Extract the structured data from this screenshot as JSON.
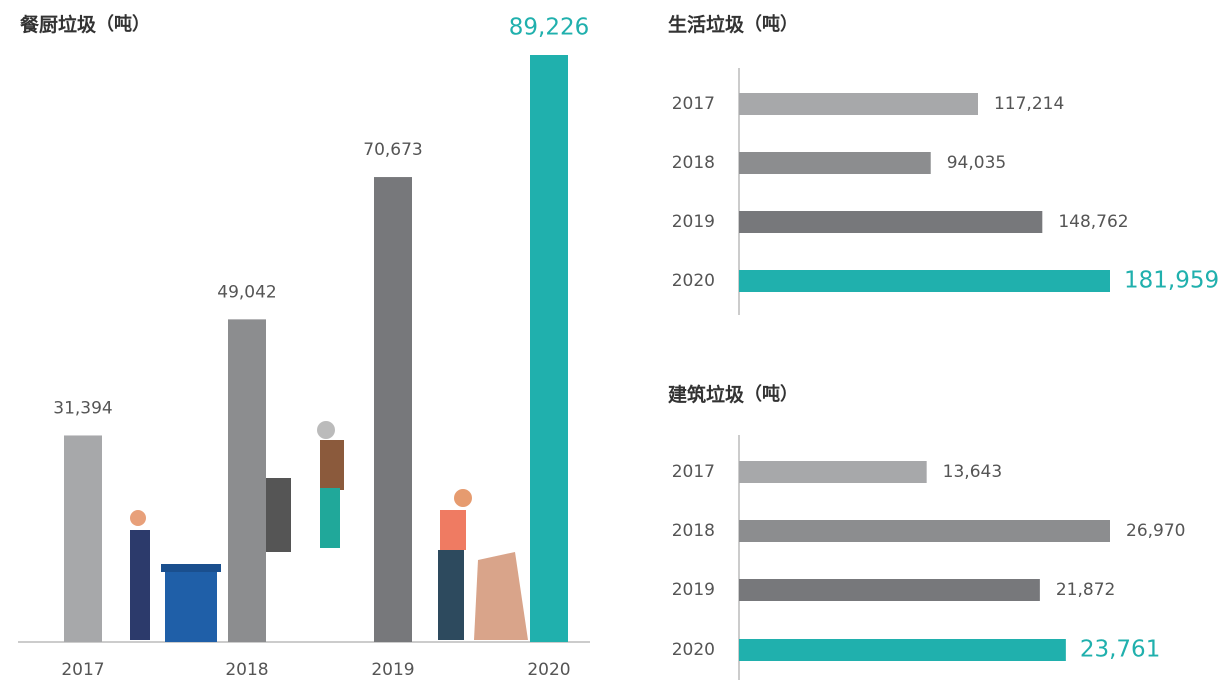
{
  "chart_data": [
    {
      "type": "bar",
      "title": "餐厨垃圾",
      "unit": "（吨）",
      "categories": [
        "2017",
        "2018",
        "2019",
        "2020"
      ],
      "values": [
        31394,
        49042,
        70673,
        89226
      ],
      "value_labels": [
        "31,394",
        "49,042",
        "70,673",
        "89,226"
      ],
      "colors": [
        "#a7a8aa",
        "#8c8d8f",
        "#77787b",
        "#20b0ad"
      ]
    },
    {
      "type": "hbar",
      "title": "生活垃圾",
      "unit": "（吨）",
      "categories": [
        "2017",
        "2018",
        "2019",
        "2020"
      ],
      "values": [
        117214,
        94035,
        148762,
        181959
      ],
      "value_labels": [
        "117,214",
        "94,035",
        "148,762",
        "181,959"
      ],
      "colors": [
        "#a7a8aa",
        "#8c8d8f",
        "#77787b",
        "#20b0ad"
      ]
    },
    {
      "type": "hbar",
      "title": "建筑垃圾",
      "unit": "（吨）",
      "categories": [
        "2017",
        "2018",
        "2019",
        "2020"
      ],
      "values": [
        13643,
        26970,
        21872,
        23761
      ],
      "value_labels": [
        "13,643",
        "26,970",
        "21,872",
        "23,761"
      ],
      "colors": [
        "#a7a8aa",
        "#8c8d8f",
        "#77787b",
        "#20b0ad"
      ]
    }
  ]
}
